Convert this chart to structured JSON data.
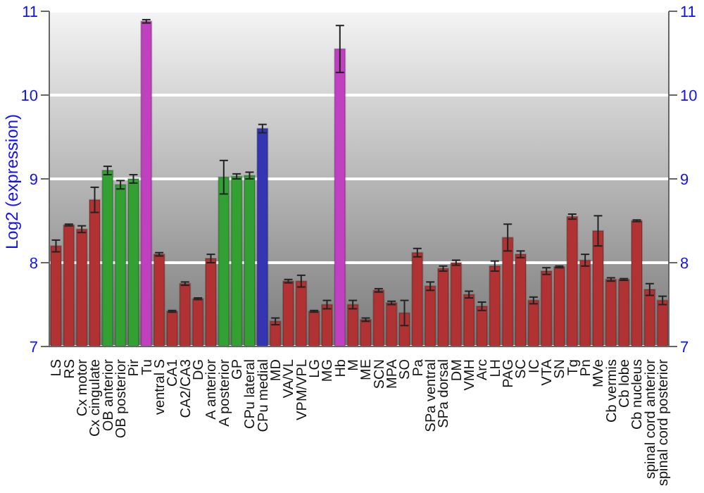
{
  "chart_data": {
    "type": "bar",
    "ylabel": "Log2 (expression)",
    "categories": [
      "LS",
      "RS",
      "Cx motor",
      "Cx cingulate",
      "OB anterior",
      "OB posterior",
      "Pir",
      "Tu",
      "ventral S",
      "CA1",
      "CA2/CA3",
      "DG",
      "A anterior",
      "A posterior",
      "GP",
      "CPu lateral",
      "CPu medial",
      "MD",
      "VA/VL",
      "VPM/VPL",
      "LG",
      "MG",
      "Hb",
      "M",
      "ME",
      "SCN",
      "MPA",
      "SO",
      "Pa",
      "SPa ventral",
      "SPa dorsal",
      "DM",
      "VMH",
      "Arc",
      "LH",
      "PAG",
      "SC",
      "IC",
      "VTA",
      "SN",
      "Tg",
      "Pn",
      "MVe",
      "Cb vermis",
      "Cb lobe",
      "Cb nucleus",
      "spinal cord anterior",
      "spinal cord posterior"
    ],
    "values": [
      8.2,
      8.45,
      8.4,
      8.75,
      9.1,
      8.93,
      9.0,
      10.88,
      8.1,
      7.42,
      7.75,
      7.57,
      8.05,
      9.02,
      9.03,
      9.04,
      9.6,
      7.3,
      7.78,
      7.78,
      7.42,
      7.5,
      10.55,
      7.5,
      7.32,
      7.67,
      7.52,
      7.4,
      8.12,
      7.72,
      7.93,
      8.0,
      7.62,
      7.48,
      7.96,
      8.3,
      8.1,
      7.55,
      7.9,
      7.95,
      8.55,
      8.03,
      8.38,
      7.8,
      7.8,
      8.5,
      7.68,
      7.55
    ],
    "errors": [
      0.07,
      0.01,
      0.04,
      0.15,
      0.05,
      0.05,
      0.05,
      0.02,
      0.02,
      0.01,
      0.02,
      0.01,
      0.05,
      0.2,
      0.03,
      0.04,
      0.05,
      0.04,
      0.02,
      0.07,
      0.01,
      0.05,
      0.28,
      0.05,
      0.02,
      0.02,
      0.02,
      0.15,
      0.05,
      0.05,
      0.03,
      0.03,
      0.04,
      0.05,
      0.06,
      0.16,
      0.04,
      0.04,
      0.04,
      0.01,
      0.03,
      0.07,
      0.18,
      0.02,
      0.01,
      0.01,
      0.07,
      0.05
    ],
    "colors": [
      "#b03232",
      "#b03232",
      "#b03232",
      "#b03232",
      "#32a032",
      "#32a032",
      "#32a032",
      "#c040c0",
      "#b03232",
      "#b03232",
      "#b03232",
      "#b03232",
      "#b03232",
      "#32a032",
      "#32a032",
      "#32a032",
      "#3434b4",
      "#b03232",
      "#b03232",
      "#b03232",
      "#b03232",
      "#b03232",
      "#c040c0",
      "#b03232",
      "#b03232",
      "#b03232",
      "#b03232",
      "#b03232",
      "#b03232",
      "#b03232",
      "#b03232",
      "#b03232",
      "#b03232",
      "#b03232",
      "#b03232",
      "#b03232",
      "#b03232",
      "#b03232",
      "#b03232",
      "#b03232",
      "#b03232",
      "#b03232",
      "#b03232",
      "#b03232",
      "#b03232",
      "#b03232",
      "#b03232",
      "#b03232"
    ],
    "ylim": [
      7,
      11
    ],
    "yticks": [
      7,
      8,
      9,
      10,
      11
    ],
    "y2lim": [
      7,
      11
    ],
    "y2ticks": [
      7,
      8,
      9,
      10,
      11
    ],
    "grid": "y"
  }
}
